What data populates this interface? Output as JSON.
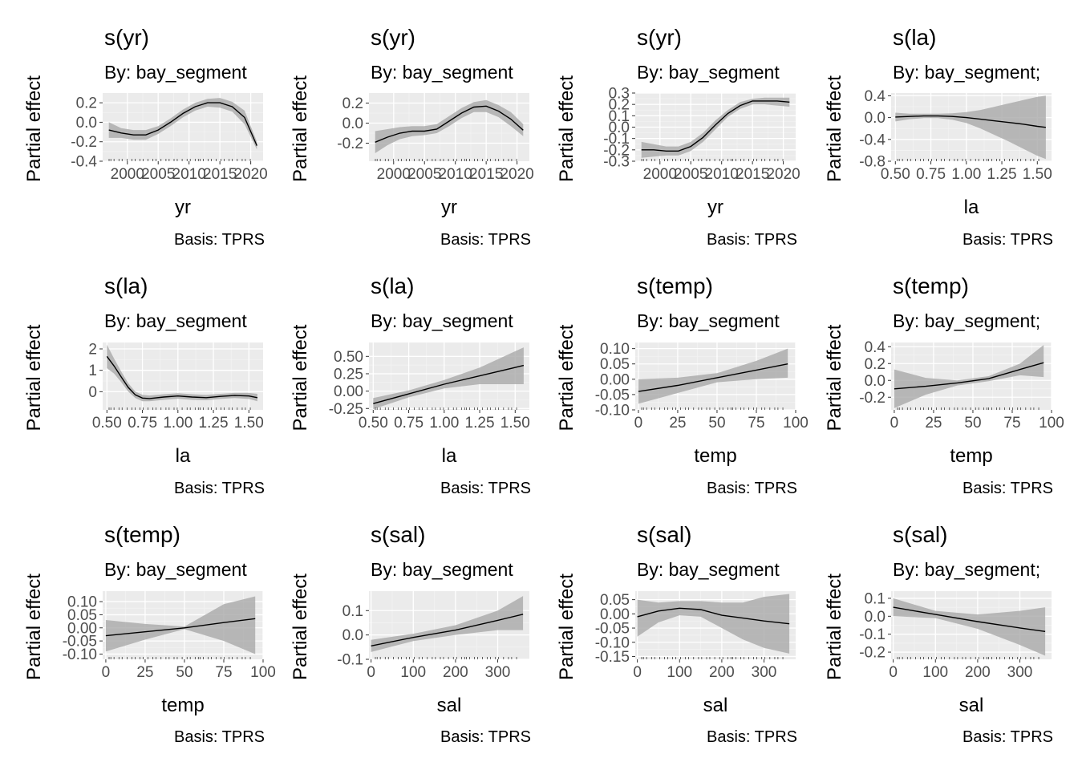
{
  "colors": {
    "panel_bg": "#ebebeb",
    "grid_major": "#ffffff",
    "grid_minor": "#f4f4f4",
    "ribbon": "#a9a9a9",
    "line": "#000000",
    "tick_text": "#4d4d4d",
    "text": "#000000"
  },
  "chart_data": [
    {
      "type": "line",
      "title": "s(yr)",
      "subtitle": "By: bay_segment",
      "caption": "Basis: TPRS",
      "xlabel": "yr",
      "ylabel": "Partial effect",
      "xlim": [
        1996,
        2022
      ],
      "ylim": [
        -0.4,
        0.3
      ],
      "xticks": [
        2000,
        2005,
        2010,
        2015,
        2020
      ],
      "xtick_labels": [
        "2000",
        "2005",
        "2010",
        "2015",
        "2020"
      ],
      "yticks": [
        -0.4,
        -0.2,
        0.0,
        0.2
      ],
      "ytick_labels": [
        "-0.4",
        "-0.2",
        "0.0",
        "0.2"
      ],
      "x": [
        1997,
        1999,
        2001,
        2003,
        2005,
        2007,
        2009,
        2011,
        2013,
        2015,
        2017,
        2019,
        2021
      ],
      "y": [
        -0.08,
        -0.11,
        -0.13,
        -0.13,
        -0.08,
        0.0,
        0.09,
        0.16,
        0.2,
        0.2,
        0.16,
        0.05,
        -0.24
      ],
      "lower": [
        -0.16,
        -0.16,
        -0.18,
        -0.18,
        -0.12,
        -0.04,
        0.05,
        0.12,
        0.16,
        0.15,
        0.11,
        -0.02,
        -0.28
      ],
      "upper": [
        0.0,
        -0.06,
        -0.08,
        -0.08,
        -0.04,
        0.04,
        0.13,
        0.2,
        0.24,
        0.25,
        0.21,
        0.12,
        -0.2
      ]
    },
    {
      "type": "line",
      "title": "s(yr)",
      "subtitle": "By: bay_segment",
      "caption": "Basis: TPRS",
      "xlabel": "yr",
      "ylabel": "Partial effect",
      "xlim": [
        1996,
        2022
      ],
      "ylim": [
        -0.38,
        0.3
      ],
      "xticks": [
        2000,
        2005,
        2010,
        2015,
        2020
      ],
      "xtick_labels": [
        "2000",
        "2005",
        "2010",
        "2015",
        "2020"
      ],
      "yticks": [
        -0.2,
        0.0,
        0.2
      ],
      "ytick_labels": [
        "-0.2",
        "0.0",
        "0.2"
      ],
      "x": [
        1997,
        1999,
        2001,
        2003,
        2005,
        2007,
        2009,
        2011,
        2013,
        2015,
        2017,
        2019,
        2021
      ],
      "y": [
        -0.19,
        -0.14,
        -0.1,
        -0.08,
        -0.08,
        -0.06,
        0.02,
        0.1,
        0.16,
        0.17,
        0.12,
        0.04,
        -0.07
      ],
      "lower": [
        -0.3,
        -0.22,
        -0.16,
        -0.13,
        -0.12,
        -0.1,
        -0.03,
        0.05,
        0.11,
        0.11,
        0.06,
        -0.03,
        -0.13
      ],
      "upper": [
        -0.08,
        -0.06,
        -0.04,
        -0.03,
        -0.03,
        -0.01,
        0.07,
        0.15,
        0.21,
        0.23,
        0.18,
        0.11,
        -0.01
      ]
    },
    {
      "type": "line",
      "title": "s(yr)",
      "subtitle": "By: bay_segment",
      "caption": "Basis: TPRS",
      "xlabel": "yr",
      "ylabel": "Partial effect",
      "xlim": [
        1996,
        2022
      ],
      "ylim": [
        -0.3,
        0.3
      ],
      "xticks": [
        2000,
        2005,
        2010,
        2015,
        2020
      ],
      "xtick_labels": [
        "2000",
        "2005",
        "2010",
        "2015",
        "2020"
      ],
      "yticks": [
        -0.3,
        -0.2,
        -0.1,
        0.0,
        0.1,
        0.2,
        0.3
      ],
      "ytick_labels": [
        "-0.3",
        "-0.2",
        "-0.1",
        "0.0",
        "0.1",
        "0.2",
        "0.3"
      ],
      "x": [
        1997,
        1999,
        2001,
        2003,
        2005,
        2007,
        2009,
        2011,
        2013,
        2015,
        2017,
        2019,
        2021
      ],
      "y": [
        -0.2,
        -0.2,
        -0.21,
        -0.21,
        -0.17,
        -0.09,
        0.02,
        0.12,
        0.19,
        0.23,
        0.23,
        0.23,
        0.22
      ],
      "lower": [
        -0.27,
        -0.26,
        -0.25,
        -0.25,
        -0.21,
        -0.13,
        -0.02,
        0.09,
        0.16,
        0.2,
        0.2,
        0.19,
        0.18
      ],
      "upper": [
        -0.13,
        -0.15,
        -0.17,
        -0.17,
        -0.13,
        -0.05,
        0.06,
        0.15,
        0.22,
        0.25,
        0.26,
        0.26,
        0.26
      ]
    },
    {
      "type": "line",
      "title": "s(la)",
      "subtitle": "By: bay_segment;",
      "caption": "Basis: TPRS",
      "xlabel": "la",
      "ylabel": "Partial effect",
      "xlim": [
        0.47,
        1.6
      ],
      "ylim": [
        -0.8,
        0.45
      ],
      "xticks": [
        0.5,
        0.75,
        1.0,
        1.25,
        1.5
      ],
      "xtick_labels": [
        "0.50",
        "0.75",
        "1.00",
        "1.25",
        "1.50"
      ],
      "yticks": [
        -0.8,
        -0.4,
        0.0,
        0.4
      ],
      "ytick_labels": [
        "-0.8",
        "-0.4",
        "0.0",
        "0.4"
      ],
      "x": [
        0.5,
        0.6,
        0.7,
        0.8,
        0.9,
        1.0,
        1.1,
        1.2,
        1.3,
        1.4,
        1.5,
        1.56
      ],
      "y": [
        0.01,
        0.02,
        0.03,
        0.03,
        0.02,
        0.0,
        -0.03,
        -0.06,
        -0.09,
        -0.12,
        -0.16,
        -0.18
      ],
      "lower": [
        -0.07,
        -0.03,
        -0.01,
        -0.01,
        -0.04,
        -0.1,
        -0.2,
        -0.32,
        -0.44,
        -0.57,
        -0.7,
        -0.76
      ],
      "upper": [
        0.09,
        0.07,
        0.07,
        0.07,
        0.08,
        0.1,
        0.14,
        0.2,
        0.26,
        0.32,
        0.38,
        0.4
      ]
    },
    {
      "type": "line",
      "title": "s(la)",
      "subtitle": "By: bay_segment",
      "caption": "Basis: TPRS",
      "xlabel": "la",
      "ylabel": "Partial effect",
      "xlim": [
        0.47,
        1.6
      ],
      "ylim": [
        -0.85,
        2.3
      ],
      "xticks": [
        0.5,
        0.75,
        1.0,
        1.25,
        1.5
      ],
      "xtick_labels": [
        "0.50",
        "0.75",
        "1.00",
        "1.25",
        "1.50"
      ],
      "yticks": [
        0,
        1,
        2
      ],
      "ytick_labels": [
        "0",
        "1",
        "2"
      ],
      "x": [
        0.5,
        0.55,
        0.6,
        0.65,
        0.7,
        0.75,
        0.8,
        0.9,
        1.0,
        1.1,
        1.2,
        1.3,
        1.4,
        1.5,
        1.56
      ],
      "y": [
        1.65,
        1.2,
        0.7,
        0.2,
        -0.15,
        -0.3,
        -0.32,
        -0.25,
        -0.2,
        -0.25,
        -0.28,
        -0.22,
        -0.18,
        -0.2,
        -0.28
      ],
      "lower": [
        1.1,
        0.85,
        0.45,
        0.0,
        -0.3,
        -0.45,
        -0.45,
        -0.38,
        -0.33,
        -0.38,
        -0.4,
        -0.34,
        -0.3,
        -0.34,
        -0.45
      ],
      "upper": [
        2.2,
        1.55,
        0.95,
        0.4,
        0.0,
        -0.15,
        -0.18,
        -0.12,
        -0.07,
        -0.12,
        -0.15,
        -0.1,
        -0.06,
        -0.06,
        -0.1
      ]
    },
    {
      "type": "line",
      "title": "s(la)",
      "subtitle": "By: bay_segment",
      "caption": "Basis: TPRS",
      "xlabel": "la",
      "ylabel": "Partial effect",
      "xlim": [
        0.47,
        1.6
      ],
      "ylim": [
        -0.27,
        0.7
      ],
      "xticks": [
        0.5,
        0.75,
        1.0,
        1.25,
        1.5
      ],
      "xtick_labels": [
        "0.50",
        "0.75",
        "1.00",
        "1.25",
        "1.50"
      ],
      "yticks": [
        -0.25,
        0.0,
        0.25,
        0.5
      ],
      "ytick_labels": [
        "-0.25",
        "0.00",
        "0.25",
        "0.50"
      ],
      "x": [
        0.5,
        0.75,
        1.0,
        1.25,
        1.56
      ],
      "y": [
        -0.18,
        -0.04,
        0.1,
        0.22,
        0.37
      ],
      "lower": [
        -0.26,
        -0.09,
        0.04,
        0.1,
        0.1
      ],
      "upper": [
        -0.1,
        0.01,
        0.16,
        0.34,
        0.63
      ]
    },
    {
      "type": "line",
      "title": "s(temp)",
      "subtitle": "By: bay_segment",
      "caption": "Basis: TPRS",
      "xlabel": "temp",
      "ylabel": "Partial effect",
      "xlim": [
        -2,
        100
      ],
      "ylim": [
        -0.1,
        0.12
      ],
      "xticks": [
        0,
        25,
        50,
        75,
        100
      ],
      "xtick_labels": [
        "0",
        "25",
        "50",
        "75",
        "100"
      ],
      "yticks": [
        -0.1,
        -0.05,
        0.0,
        0.05,
        0.1
      ],
      "ytick_labels": [
        "-0.10",
        "-0.05",
        "0.00",
        "0.05",
        "0.10"
      ],
      "x": [
        0,
        25,
        50,
        75,
        95
      ],
      "y": [
        -0.04,
        -0.02,
        0.005,
        0.03,
        0.05
      ],
      "lower": [
        -0.08,
        -0.045,
        -0.01,
        0.0,
        0.005
      ],
      "upper": [
        0.0,
        0.005,
        0.02,
        0.06,
        0.1
      ]
    },
    {
      "type": "line",
      "title": "s(temp)",
      "subtitle": "By: bay_segment;",
      "caption": "Basis: TPRS",
      "xlabel": "temp",
      "ylabel": "Partial effect",
      "xlim": [
        -2,
        100
      ],
      "ylim": [
        -0.35,
        0.45
      ],
      "xticks": [
        0,
        25,
        50,
        75,
        100
      ],
      "xtick_labels": [
        "0",
        "25",
        "50",
        "75",
        "100"
      ],
      "yticks": [
        -0.2,
        0.0,
        0.2,
        0.4
      ],
      "ytick_labels": [
        "-0.2",
        "0.0",
        "0.2",
        "0.4"
      ],
      "x": [
        0,
        20,
        40,
        60,
        80,
        95
      ],
      "y": [
        -0.1,
        -0.07,
        -0.03,
        0.02,
        0.13,
        0.21
      ],
      "lower": [
        -0.33,
        -0.17,
        -0.06,
        -0.01,
        0.06,
        0.04
      ],
      "upper": [
        0.13,
        0.03,
        0.0,
        0.05,
        0.2,
        0.42
      ]
    },
    {
      "type": "line",
      "title": "s(temp)",
      "subtitle": "By: bay_segment",
      "caption": "Basis: TPRS",
      "xlabel": "temp",
      "ylabel": "Partial effect",
      "xlim": [
        -2,
        100
      ],
      "ylim": [
        -0.12,
        0.14
      ],
      "xticks": [
        0,
        25,
        50,
        75,
        100
      ],
      "xtick_labels": [
        "0",
        "25",
        "50",
        "75",
        "100"
      ],
      "yticks": [
        -0.1,
        -0.05,
        0.0,
        0.05,
        0.1
      ],
      "ytick_labels": [
        "-0.10",
        "-0.05",
        "0.00",
        "0.05",
        "0.10"
      ],
      "x": [
        0,
        25,
        50,
        75,
        95
      ],
      "y": [
        -0.03,
        -0.015,
        0.0,
        0.02,
        0.035
      ],
      "lower": [
        -0.09,
        -0.045,
        -0.005,
        -0.05,
        -0.1
      ],
      "upper": [
        0.03,
        0.015,
        0.005,
        0.09,
        0.12
      ]
    },
    {
      "type": "line",
      "title": "s(sal)",
      "subtitle": "By: bay_segment",
      "caption": "Basis: TPRS",
      "xlabel": "sal",
      "ylabel": "Partial effect",
      "xlim": [
        -5,
        375
      ],
      "ylim": [
        -0.1,
        0.18
      ],
      "xticks": [
        0,
        100,
        200,
        300
      ],
      "xtick_labels": [
        "0",
        "100",
        "200",
        "300"
      ],
      "yticks": [
        -0.1,
        0.0,
        0.1
      ],
      "ytick_labels": [
        "-0.1",
        "0.0",
        "0.1"
      ],
      "x": [
        0,
        100,
        200,
        300,
        360
      ],
      "y": [
        -0.045,
        -0.01,
        0.02,
        0.06,
        0.085
      ],
      "lower": [
        -0.07,
        -0.025,
        0.0,
        0.02,
        0.02
      ],
      "upper": [
        -0.02,
        0.005,
        0.04,
        0.1,
        0.16
      ]
    },
    {
      "type": "line",
      "title": "s(sal)",
      "subtitle": "By: bay_segment",
      "caption": "Basis: TPRS",
      "xlabel": "sal",
      "ylabel": "Partial effect",
      "xlim": [
        -5,
        375
      ],
      "ylim": [
        -0.16,
        0.08
      ],
      "xticks": [
        0,
        100,
        200,
        300
      ],
      "xtick_labels": [
        "0",
        "100",
        "200",
        "300"
      ],
      "yticks": [
        -0.15,
        -0.1,
        -0.05,
        0.0,
        0.05
      ],
      "ytick_labels": [
        "-0.15",
        "-0.10",
        "-0.05",
        "0.00",
        "0.05"
      ],
      "x": [
        0,
        50,
        100,
        150,
        200,
        250,
        300,
        360
      ],
      "y": [
        -0.01,
        0.01,
        0.02,
        0.015,
        -0.005,
        -0.015,
        -0.025,
        -0.035
      ],
      "lower": [
        -0.08,
        -0.03,
        -0.005,
        -0.01,
        -0.05,
        -0.09,
        -0.12,
        -0.14
      ],
      "upper": [
        0.05,
        0.04,
        0.045,
        0.045,
        0.04,
        0.04,
        0.06,
        0.07
      ]
    },
    {
      "type": "line",
      "title": "s(sal)",
      "subtitle": "By: bay_segment;",
      "caption": "Basis: TPRS",
      "xlabel": "sal",
      "ylabel": "Partial effect",
      "xlim": [
        -5,
        375
      ],
      "ylim": [
        -0.24,
        0.14
      ],
      "xticks": [
        0,
        100,
        200,
        300
      ],
      "xtick_labels": [
        "0",
        "100",
        "200",
        "300"
      ],
      "yticks": [
        -0.2,
        -0.1,
        0.0,
        0.1
      ],
      "ytick_labels": [
        "-0.2",
        "-0.1",
        "0.0",
        "0.1"
      ],
      "x": [
        0,
        100,
        200,
        300,
        360
      ],
      "y": [
        0.05,
        0.01,
        -0.03,
        -0.065,
        -0.085
      ],
      "lower": [
        0.0,
        -0.01,
        -0.07,
        -0.16,
        -0.22
      ],
      "upper": [
        0.1,
        0.03,
        0.01,
        0.03,
        0.05
      ]
    }
  ]
}
